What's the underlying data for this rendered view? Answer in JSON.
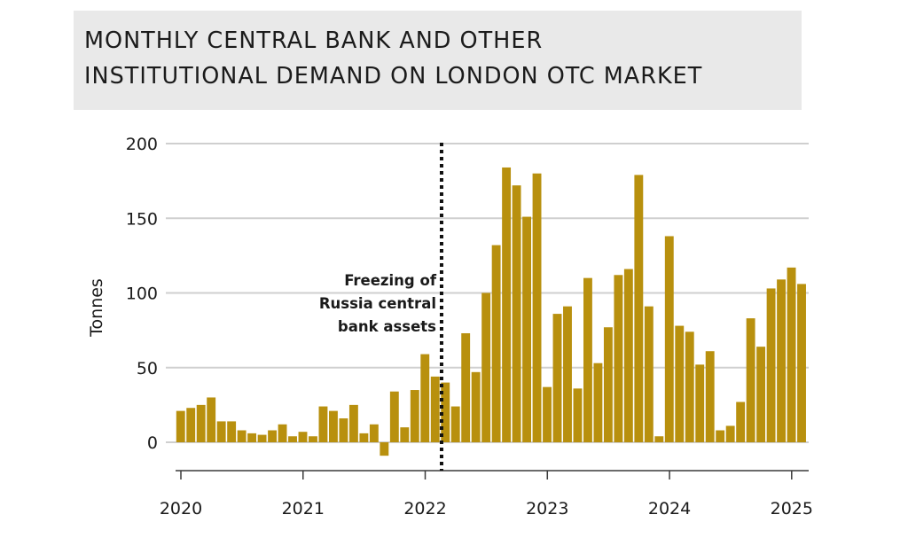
{
  "chart_data": {
    "type": "bar",
    "title_lines": [
      "MONTHLY CENTRAL BANK AND OTHER",
      "INSTITUTIONAL DEMAND ON LONDON OTC MARKET"
    ],
    "ylabel": "Tonnes",
    "ylim": [
      -20,
      200
    ],
    "yticks": [
      "0",
      "50",
      "100",
      "150",
      "200"
    ],
    "x_tick_labels": [
      "2020",
      "2021",
      "2022",
      "2023",
      "2024",
      "2025"
    ],
    "grid": true,
    "bar_color": "#b8900e",
    "months": [
      "2020-01",
      "2020-02",
      "2020-03",
      "2020-04",
      "2020-05",
      "2020-06",
      "2020-07",
      "2020-08",
      "2020-09",
      "2020-10",
      "2020-11",
      "2020-12",
      "2021-01",
      "2021-02",
      "2021-03",
      "2021-04",
      "2021-05",
      "2021-06",
      "2021-07",
      "2021-08",
      "2021-09",
      "2021-10",
      "2021-11",
      "2021-12",
      "2022-01",
      "2022-02",
      "2022-03",
      "2022-04",
      "2022-05",
      "2022-06",
      "2022-07",
      "2022-08",
      "2022-09",
      "2022-10",
      "2022-11",
      "2022-12",
      "2023-01",
      "2023-02",
      "2023-03",
      "2023-04",
      "2023-05",
      "2023-06",
      "2023-07",
      "2023-08",
      "2023-09",
      "2023-10",
      "2023-11",
      "2023-12",
      "2024-01",
      "2024-02",
      "2024-03",
      "2024-04",
      "2024-05",
      "2024-06",
      "2024-07",
      "2024-08",
      "2024-09",
      "2024-10",
      "2024-11",
      "2024-12",
      "2025-01",
      "2025-02"
    ],
    "values": [
      21,
      23,
      25,
      30,
      14,
      14,
      8,
      6,
      5,
      8,
      12,
      4,
      7,
      4,
      24,
      21,
      16,
      25,
      6,
      12,
      -9,
      34,
      10,
      35,
      59,
      44,
      40,
      24,
      73,
      47,
      100,
      132,
      184,
      172,
      151,
      180,
      37,
      86,
      91,
      36,
      110,
      53,
      77,
      112,
      116,
      179,
      91,
      4,
      138,
      78,
      74,
      52,
      61,
      8,
      11,
      27,
      83,
      64,
      103,
      109,
      117,
      106
    ],
    "annotation": {
      "month": "2022-03",
      "lines": [
        "Freezing of",
        "Russia central",
        "bank assets"
      ]
    }
  }
}
